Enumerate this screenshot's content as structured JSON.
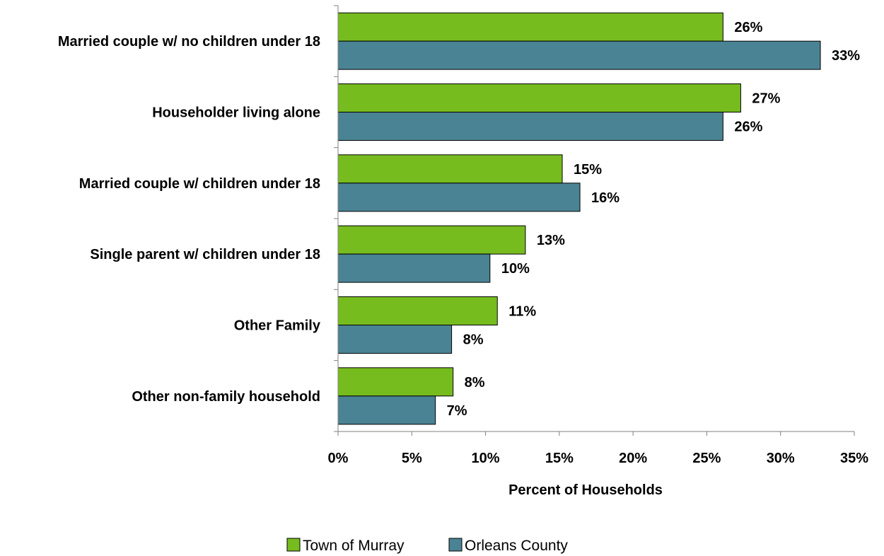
{
  "chart_data": {
    "type": "bar",
    "orientation": "horizontal",
    "title": "",
    "xlabel": "Percent of Households",
    "ylabel": "",
    "xlim": [
      0,
      35
    ],
    "x_ticks": [
      0,
      5,
      10,
      15,
      20,
      25,
      30,
      35
    ],
    "x_tick_labels": [
      "0%",
      "5%",
      "10%",
      "15%",
      "20%",
      "25%",
      "30%",
      "35%"
    ],
    "grid": false,
    "legend_position": "bottom",
    "categories": [
      "Married couple w/ no children under 18",
      "Householder living alone",
      "Married couple w/ children under 18",
      "Single parent w/ children under 18",
      "Other Family",
      "Other non-family household"
    ],
    "series": [
      {
        "name": "Town of Murray",
        "color": "#77bc1f",
        "values": [
          26.1,
          27.3,
          15.2,
          12.7,
          10.8,
          7.8
        ],
        "labels": [
          "26%",
          "27%",
          "15%",
          "13%",
          "11%",
          "8%"
        ]
      },
      {
        "name": "Orleans County",
        "color": "#4a8394",
        "values": [
          32.7,
          26.1,
          16.4,
          10.3,
          7.7,
          6.6
        ],
        "labels": [
          "33%",
          "26%",
          "16%",
          "10%",
          "8%",
          "7%"
        ]
      }
    ]
  }
}
